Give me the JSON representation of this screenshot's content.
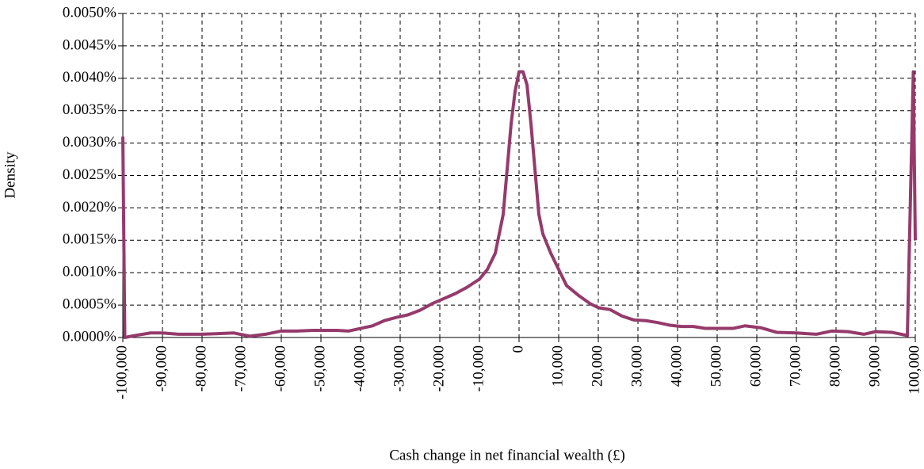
{
  "chart_data": {
    "type": "line",
    "x_label": "Cash change in net financial wealth (£)",
    "y_label": "Density",
    "x": [
      -100000,
      -99500,
      -97000,
      -93000,
      -90000,
      -86000,
      -80000,
      -76000,
      -72000,
      -68000,
      -64000,
      -60000,
      -56000,
      -52000,
      -46000,
      -43000,
      -40000,
      -37000,
      -34000,
      -31000,
      -28000,
      -25000,
      -22000,
      -19000,
      -16000,
      -13000,
      -10000,
      -8000,
      -6000,
      -4000,
      -3000,
      -2000,
      -1000,
      0,
      1000,
      2000,
      3000,
      4000,
      5000,
      6000,
      8000,
      10000,
      12000,
      15000,
      18000,
      20000,
      23000,
      26000,
      29000,
      32000,
      35000,
      38000,
      41000,
      44000,
      47000,
      50000,
      54000,
      57000,
      61000,
      65000,
      70000,
      75000,
      79000,
      83000,
      87000,
      90000,
      94000,
      98000,
      99500,
      100000
    ],
    "series": [
      {
        "color": "#953a6b",
        "values": [
          0.0031,
          0.0,
          3e-05,
          7e-05,
          7e-05,
          5e-05,
          5e-05,
          6e-05,
          7e-05,
          2e-05,
          5e-05,
          0.0001,
          0.0001,
          0.00011,
          0.00011,
          0.0001,
          0.00014,
          0.00018,
          0.00026,
          0.00031,
          0.00035,
          0.00042,
          0.00052,
          0.0006,
          0.00068,
          0.00078,
          0.0009,
          0.00105,
          0.0013,
          0.0019,
          0.0026,
          0.0033,
          0.0038,
          0.0041,
          0.0041,
          0.0039,
          0.0033,
          0.0026,
          0.0019,
          0.0016,
          0.0013,
          0.00105,
          0.0008,
          0.00065,
          0.00052,
          0.00046,
          0.00043,
          0.00033,
          0.00027,
          0.00026,
          0.00023,
          0.00019,
          0.00017,
          0.00017,
          0.00014,
          0.00014,
          0.00014,
          0.00018,
          0.00015,
          8e-05,
          7e-05,
          5e-05,
          0.0001,
          9e-05,
          5e-05,
          9e-05,
          8e-05,
          3e-05,
          0.0041,
          0.0015
        ]
      }
    ],
    "xlim": [
      -100000,
      100000
    ],
    "xticks": [
      {
        "value": -100000,
        "label": "-100,000"
      },
      {
        "value": -90000,
        "label": "-90,000"
      },
      {
        "value": -80000,
        "label": "-80,000"
      },
      {
        "value": -70000,
        "label": "-70,000"
      },
      {
        "value": -60000,
        "label": "-60,000"
      },
      {
        "value": -50000,
        "label": "-50,000"
      },
      {
        "value": -40000,
        "label": "-40,000"
      },
      {
        "value": -30000,
        "label": "-30,000"
      },
      {
        "value": -20000,
        "label": "-20,000"
      },
      {
        "value": -10000,
        "label": "-10,000"
      },
      0,
      {
        "value": 10000,
        "label": "10,000"
      },
      {
        "value": 20000,
        "label": "20,000"
      },
      {
        "value": 30000,
        "label": "30,000"
      },
      {
        "value": 40000,
        "label": "40,000"
      },
      {
        "value": 50000,
        "label": "50,000"
      },
      {
        "value": 60000,
        "label": "60,000"
      },
      {
        "value": 70000,
        "label": "70,000"
      },
      {
        "value": 80000,
        "label": "80,000"
      },
      {
        "value": 90000,
        "label": "90,000"
      },
      {
        "value": 100000,
        "label": "100,000"
      }
    ],
    "ylim": [
      0,
      0.005
    ],
    "yticks": [
      {
        "value": 0,
        "label": "0.0000%"
      },
      {
        "value": 0.0005,
        "label": "0.0005%"
      },
      {
        "value": 0.001,
        "label": "0.0010%"
      },
      {
        "value": 0.0015,
        "label": "0.0015%"
      },
      {
        "value": 0.002,
        "label": "0.0020%"
      },
      {
        "value": 0.0025,
        "label": "0.0025%"
      },
      {
        "value": 0.003,
        "label": "0.0030%"
      },
      {
        "value": 0.0035,
        "label": "0.0035%"
      },
      {
        "value": 0.004,
        "label": "0.0040%"
      },
      {
        "value": 0.0045,
        "label": "0.0045%"
      },
      {
        "value": 0.005,
        "label": "0.0050%"
      }
    ],
    "grid": true
  }
}
